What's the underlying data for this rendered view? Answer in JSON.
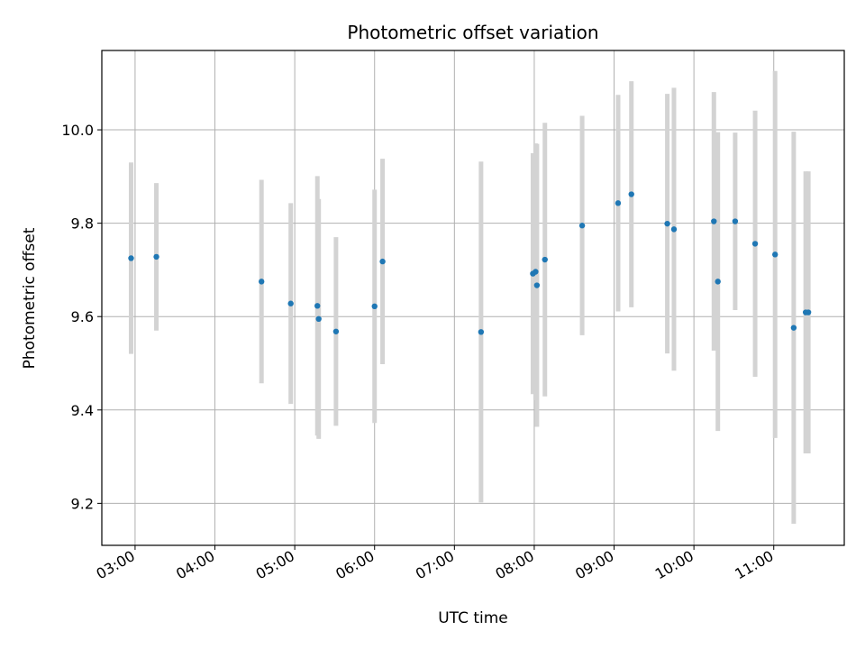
{
  "chart_data": {
    "type": "scatter",
    "title": "Photometric offset variation",
    "xlabel": "UTC time",
    "ylabel": "Photometric offset",
    "xlim": [
      "02:35",
      "11:53"
    ],
    "ylim": [
      9.11,
      10.17
    ],
    "x_ticks": [
      "03:00",
      "04:00",
      "05:00",
      "06:00",
      "07:00",
      "08:00",
      "09:00",
      "10:00",
      "11:00"
    ],
    "y_ticks": [
      9.2,
      9.4,
      9.6,
      9.8,
      10.0
    ],
    "y_tick_labels": [
      "9.2",
      "9.4",
      "9.6",
      "9.8",
      "10.0"
    ],
    "grid": true,
    "point_color": "#1f77b4",
    "errorbar_color": "#d3d3d3",
    "points": [
      {
        "time": "02:57",
        "y": 9.725,
        "yerr": 0.205
      },
      {
        "time": "03:16",
        "y": 9.728,
        "yerr": 0.158
      },
      {
        "time": "04:35",
        "y": 9.675,
        "yerr": 0.218
      },
      {
        "time": "04:57",
        "y": 9.628,
        "yerr": 0.215
      },
      {
        "time": "05:17",
        "y": 9.623,
        "yerr": 0.278
      },
      {
        "time": "05:18",
        "y": 9.595,
        "yerr": 0.257
      },
      {
        "time": "05:31",
        "y": 9.568,
        "yerr": 0.202
      },
      {
        "time": "06:00",
        "y": 9.622,
        "yerr": 0.25
      },
      {
        "time": "06:06",
        "y": 9.718,
        "yerr": 0.22
      },
      {
        "time": "07:20",
        "y": 9.567,
        "yerr": 0.365
      },
      {
        "time": "07:59",
        "y": 9.692,
        "yerr": 0.258
      },
      {
        "time": "08:01",
        "y": 9.696,
        "yerr": 0.275
      },
      {
        "time": "08:02",
        "y": 9.667,
        "yerr": 0.303
      },
      {
        "time": "08:08",
        "y": 9.722,
        "yerr": 0.293
      },
      {
        "time": "08:36",
        "y": 9.795,
        "yerr": 0.235
      },
      {
        "time": "09:03",
        "y": 9.843,
        "yerr": 0.232
      },
      {
        "time": "09:13",
        "y": 9.862,
        "yerr": 0.242
      },
      {
        "time": "09:40",
        "y": 9.799,
        "yerr": 0.278
      },
      {
        "time": "09:45",
        "y": 9.787,
        "yerr": 0.303
      },
      {
        "time": "10:15",
        "y": 9.804,
        "yerr": 0.277
      },
      {
        "time": "10:18",
        "y": 9.675,
        "yerr": 0.32
      },
      {
        "time": "10:31",
        "y": 9.804,
        "yerr": 0.19
      },
      {
        "time": "10:46",
        "y": 9.756,
        "yerr": 0.285
      },
      {
        "time": "11:01",
        "y": 9.733,
        "yerr": 0.393
      },
      {
        "time": "11:15",
        "y": 9.576,
        "yerr": 0.42
      },
      {
        "time": "11:24",
        "y": 9.609,
        "yerr": 0.302
      },
      {
        "time": "11:26",
        "y": 9.609,
        "yerr": 0.302
      }
    ]
  }
}
